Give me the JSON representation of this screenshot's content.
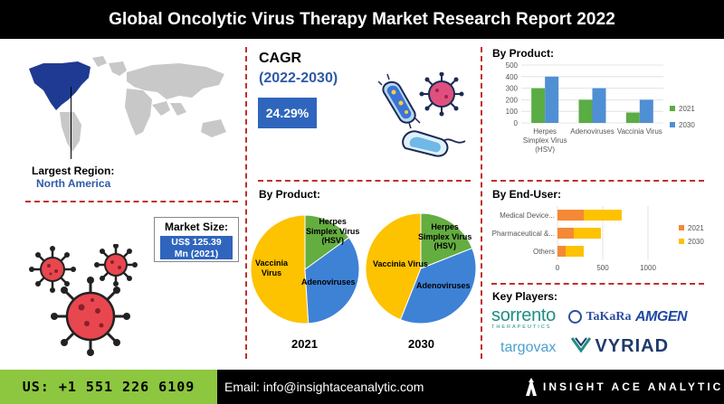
{
  "header": {
    "title": "Global Oncolytic Virus Therapy Market Research Report 2022"
  },
  "largest_region": {
    "label": "Largest Region:",
    "value": "North America"
  },
  "market_size": {
    "label": "Market Size:",
    "value_line1": "US$ 125.39",
    "value_line2": "Mn (2021)"
  },
  "cagr": {
    "label": "CAGR",
    "period": "(2022-2030)",
    "value": "24.29%"
  },
  "sections": {
    "by_product_pies": "By Product:",
    "by_product_bars": "By Product:",
    "by_end_user": "By End-User:",
    "key_players": "Key Players:"
  },
  "key_players": {
    "sorrento_name": "sorrento",
    "sorrento_tagline": "THERAPEUTICS",
    "takara": "TaKaRa",
    "amgen": "AMGEN",
    "targovax": "targovax",
    "vyriad": "VYRIAD"
  },
  "footer": {
    "phone": "US: +1 551 226 6109",
    "email": "Email: info@insightaceanalytic.com",
    "brand": "INSIGHT ACE ANALYTIC"
  },
  "colors": {
    "green_2021": "#5aac44",
    "blue_2030": "#4f8fd4",
    "pie_vaccinia": "#fdc200",
    "pie_adeno": "#3e82d6",
    "pie_hsv": "#64ad41",
    "end_user_2021": "#f58835",
    "end_user_2030": "#fdc200",
    "accent_blue": "#2f65bd",
    "divider_red": "#c0302a",
    "footer_green": "#8dc63f"
  },
  "chart_data": [
    {
      "type": "bar",
      "title": "By Product:",
      "categories": [
        "Herpes Simplex Virus (HSV)",
        "Adenoviruses",
        "Vaccinia Virus"
      ],
      "category_lines": [
        [
          "Herpes",
          "Simplex Virus",
          "(HSV)"
        ],
        [
          "Adenoviruses"
        ],
        [
          "Vaccinia Virus"
        ]
      ],
      "series": [
        {
          "name": "2021",
          "values": [
            300,
            200,
            90
          ]
        },
        {
          "name": "2030",
          "values": [
            400,
            300,
            200
          ]
        }
      ],
      "ylim": [
        0,
        500
      ],
      "yticks": [
        0,
        100,
        200,
        300,
        400,
        500
      ],
      "legend": "right",
      "grid": true
    },
    {
      "type": "bar",
      "orientation": "horizontal",
      "stacked": true,
      "title": "By End-User:",
      "categories": [
        "Medical Device...",
        "Pharmaceutical &...",
        "Others"
      ],
      "series": [
        {
          "name": "2021",
          "values": [
            290,
            180,
            90
          ]
        },
        {
          "name": "2030",
          "values": [
            420,
            300,
            200
          ]
        }
      ],
      "xlim": [
        0,
        1000
      ],
      "xticks": [
        0,
        500,
        1000
      ],
      "legend": "right",
      "grid": true
    },
    {
      "type": "pie",
      "title": "2021",
      "slices": [
        {
          "label": "Vaccinia Virus",
          "value": 51
        },
        {
          "label": "Adenoviruses",
          "value": 34
        },
        {
          "label": "Herpes Simplex Virus (HSV)",
          "value": 15
        }
      ],
      "label_lines": {
        "vaccinia": [
          "Vaccinia",
          "Virus"
        ],
        "adeno": [
          "Adenoviruses"
        ],
        "hsv": [
          "Herpes",
          "Simplex Virus",
          "(HSV)"
        ]
      }
    },
    {
      "type": "pie",
      "title": "2030",
      "slices": [
        {
          "label": "Vaccinia Virus",
          "value": 44
        },
        {
          "label": "Adenoviruses",
          "value": 37
        },
        {
          "label": "Herpes Simplex Virus (HSV)",
          "value": 19
        }
      ],
      "label_lines": {
        "vaccinia": [
          "Vaccinia Virus"
        ],
        "adeno": [
          "Adenoviruses"
        ],
        "hsv": [
          "Herpes",
          "Simplex Virus",
          "(HSV)"
        ]
      }
    }
  ]
}
